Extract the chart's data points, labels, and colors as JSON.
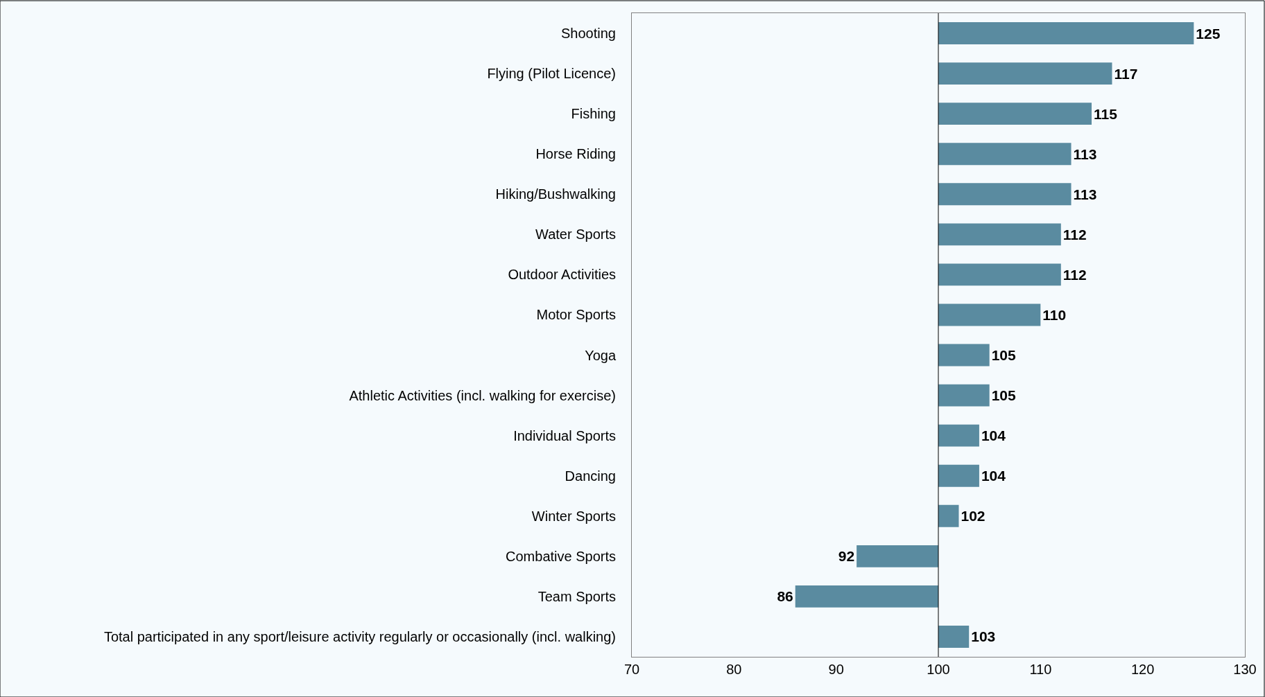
{
  "chart_data": {
    "type": "bar",
    "orientation": "horizontal",
    "categories": [
      "Shooting",
      "Flying (Pilot Licence)",
      "Fishing",
      "Horse Riding",
      "Hiking/Bushwalking",
      "Water Sports",
      "Outdoor Activities",
      "Motor Sports",
      "Yoga",
      "Athletic Activities (incl. walking for exercise)",
      "Individual Sports",
      "Dancing",
      "Winter Sports",
      "Combative Sports",
      "Team Sports",
      "Total participated in any sport/leisure activity regularly or occasionally (incl. walking)"
    ],
    "base": [
      100,
      100,
      100,
      100,
      100,
      100,
      100,
      100,
      100,
      100,
      100,
      100,
      100,
      100,
      100,
      100
    ],
    "values": [
      25,
      17,
      15,
      13,
      13,
      12,
      12,
      10,
      5,
      5,
      4,
      4,
      2,
      -8,
      -14,
      3
    ],
    "value_labels": [
      "125",
      "117",
      "115",
      "113",
      "113",
      "112",
      "112",
      "110",
      "105",
      "105",
      "104",
      "104",
      "102",
      "92",
      "86",
      "103"
    ],
    "color": "#5a8ba0",
    "xlim": [
      70,
      130
    ],
    "xticks": [
      70,
      80,
      90,
      100,
      110,
      120,
      130
    ],
    "ref_lines": [
      {
        "axis": "x",
        "value": 100,
        "color": "#000000"
      }
    ],
    "grid": false
  }
}
